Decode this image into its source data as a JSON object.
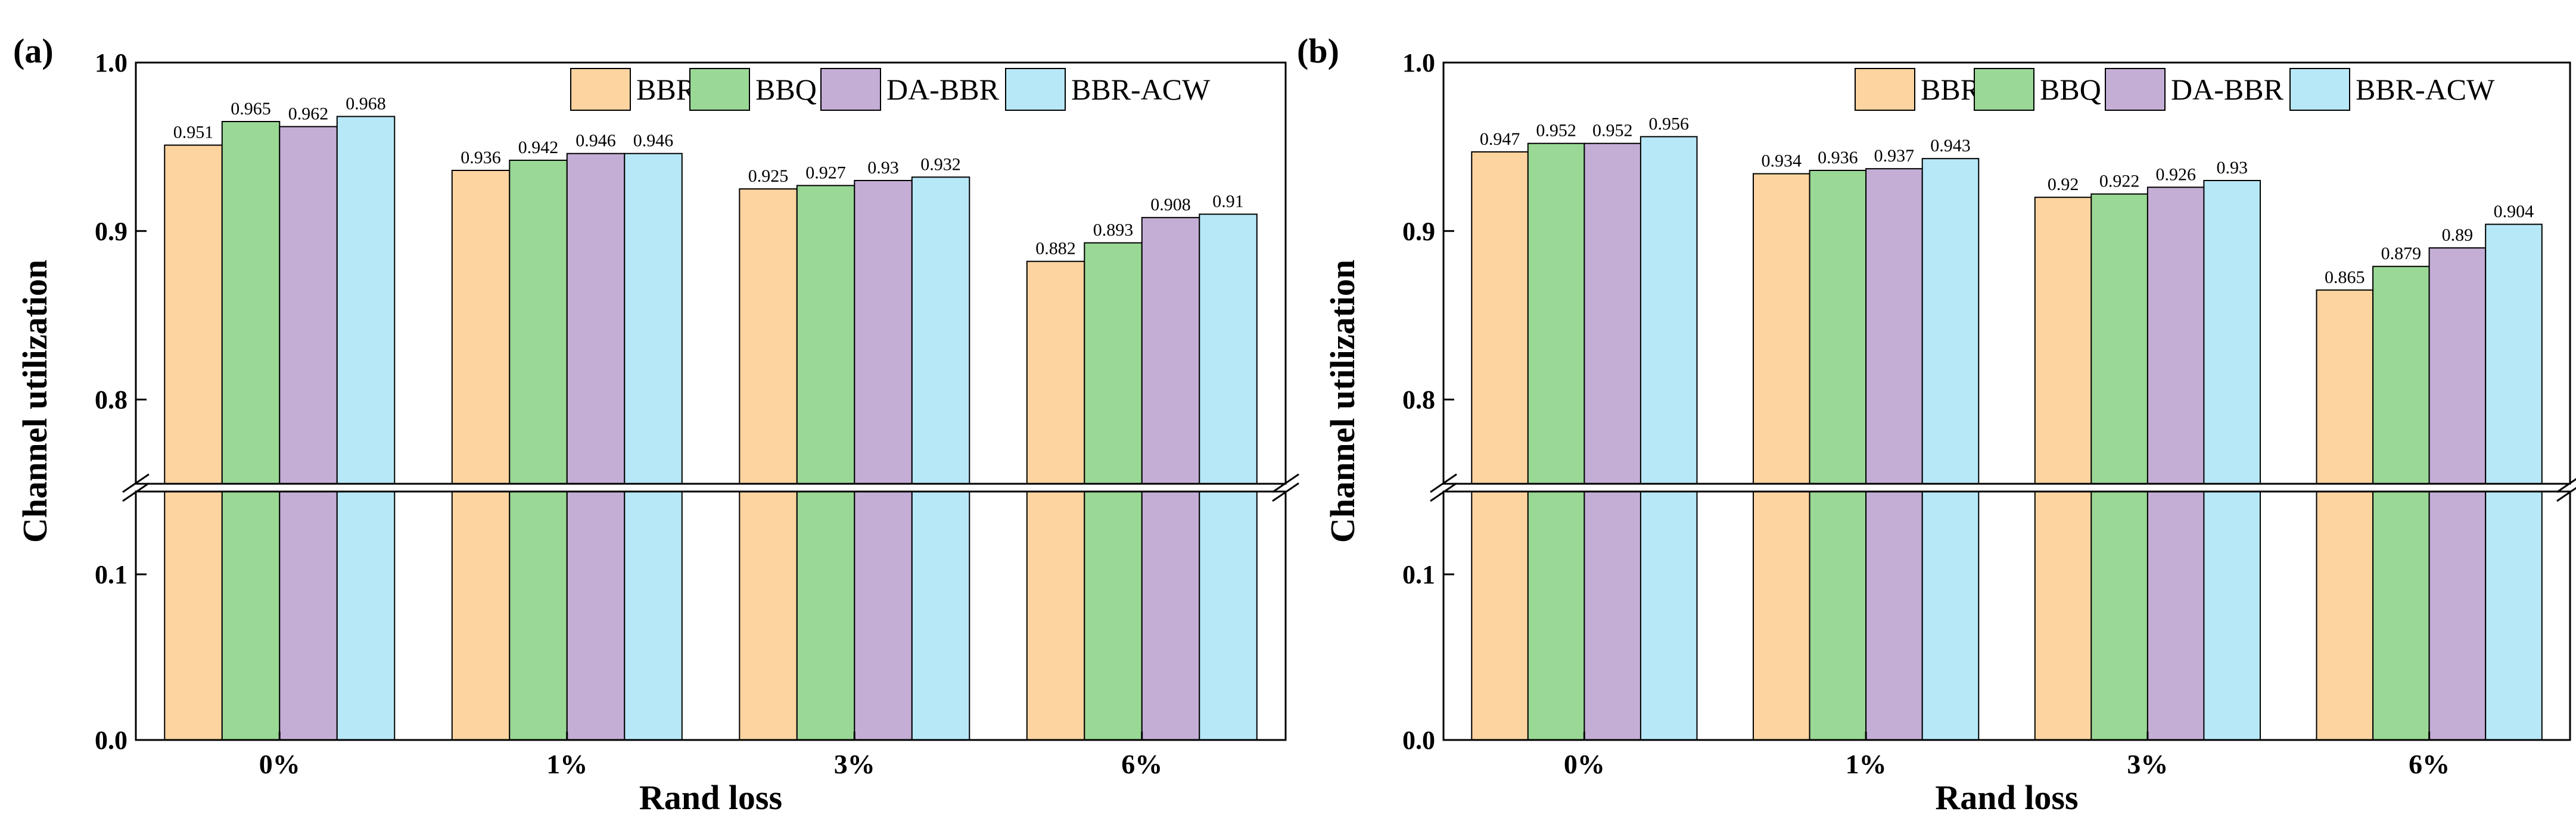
{
  "colors": {
    "BBR": "#fdd4a0",
    "BBQ": "#9ad896",
    "DA-BBR": "#c4aed6",
    "BBR-ACW": "#b7e8f8",
    "axis": "#000000"
  },
  "chart_data": [
    {
      "type": "bar",
      "panel_label": "(a)",
      "xlabel": "Rand loss",
      "ylabel": "Channel utilization",
      "categories": [
        "0%",
        "1%",
        "3%",
        "6%"
      ],
      "axis_break": {
        "lower_range": [
          0.0,
          0.15
        ],
        "upper_range": [
          0.75,
          1.0
        ]
      },
      "yticks_lower": [
        "0.0",
        "0.1"
      ],
      "yticks_upper": [
        "0.8",
        "0.9",
        "1.0"
      ],
      "legend_position": "top-right",
      "series": [
        {
          "name": "BBR",
          "values": [
            0.951,
            0.936,
            0.925,
            0.882
          ],
          "labels": [
            "0.951",
            "0.936",
            "0.925",
            "0.882"
          ]
        },
        {
          "name": "BBQ",
          "values": [
            0.965,
            0.942,
            0.927,
            0.893
          ],
          "labels": [
            "0.965",
            "0.942",
            "0.927",
            "0.893"
          ]
        },
        {
          "name": "DA-BBR",
          "values": [
            0.962,
            0.946,
            0.93,
            0.908
          ],
          "labels": [
            "0.962",
            "0.946",
            "0.93",
            "0.908"
          ]
        },
        {
          "name": "BBR-ACW",
          "values": [
            0.968,
            0.946,
            0.932,
            0.91
          ],
          "labels": [
            "0.968",
            "0.946",
            "0.932",
            "0.91"
          ]
        }
      ]
    },
    {
      "type": "bar",
      "panel_label": "(b)",
      "xlabel": "Rand loss",
      "ylabel": "Channel utilization",
      "categories": [
        "0%",
        "1%",
        "3%",
        "6%"
      ],
      "axis_break": {
        "lower_range": [
          0.0,
          0.15
        ],
        "upper_range": [
          0.75,
          1.0
        ]
      },
      "yticks_lower": [
        "0.0",
        "0.1"
      ],
      "yticks_upper": [
        "0.8",
        "0.9",
        "1.0"
      ],
      "legend_position": "top-right",
      "series": [
        {
          "name": "BBR",
          "values": [
            0.947,
            0.934,
            0.92,
            0.865
          ],
          "labels": [
            "0.947",
            "0.934",
            "0.92",
            "0.865"
          ]
        },
        {
          "name": "BBQ",
          "values": [
            0.952,
            0.936,
            0.922,
            0.879
          ],
          "labels": [
            "0.952",
            "0.936",
            "0.922",
            "0.879"
          ]
        },
        {
          "name": "DA-BBR",
          "values": [
            0.952,
            0.937,
            0.926,
            0.89
          ],
          "labels": [
            "0.952",
            "0.937",
            "0.926",
            "0.89"
          ]
        },
        {
          "name": "BBR-ACW",
          "values": [
            0.956,
            0.943,
            0.93,
            0.904
          ],
          "labels": [
            "0.956",
            "0.943",
            "0.93",
            "0.904"
          ]
        }
      ]
    }
  ]
}
